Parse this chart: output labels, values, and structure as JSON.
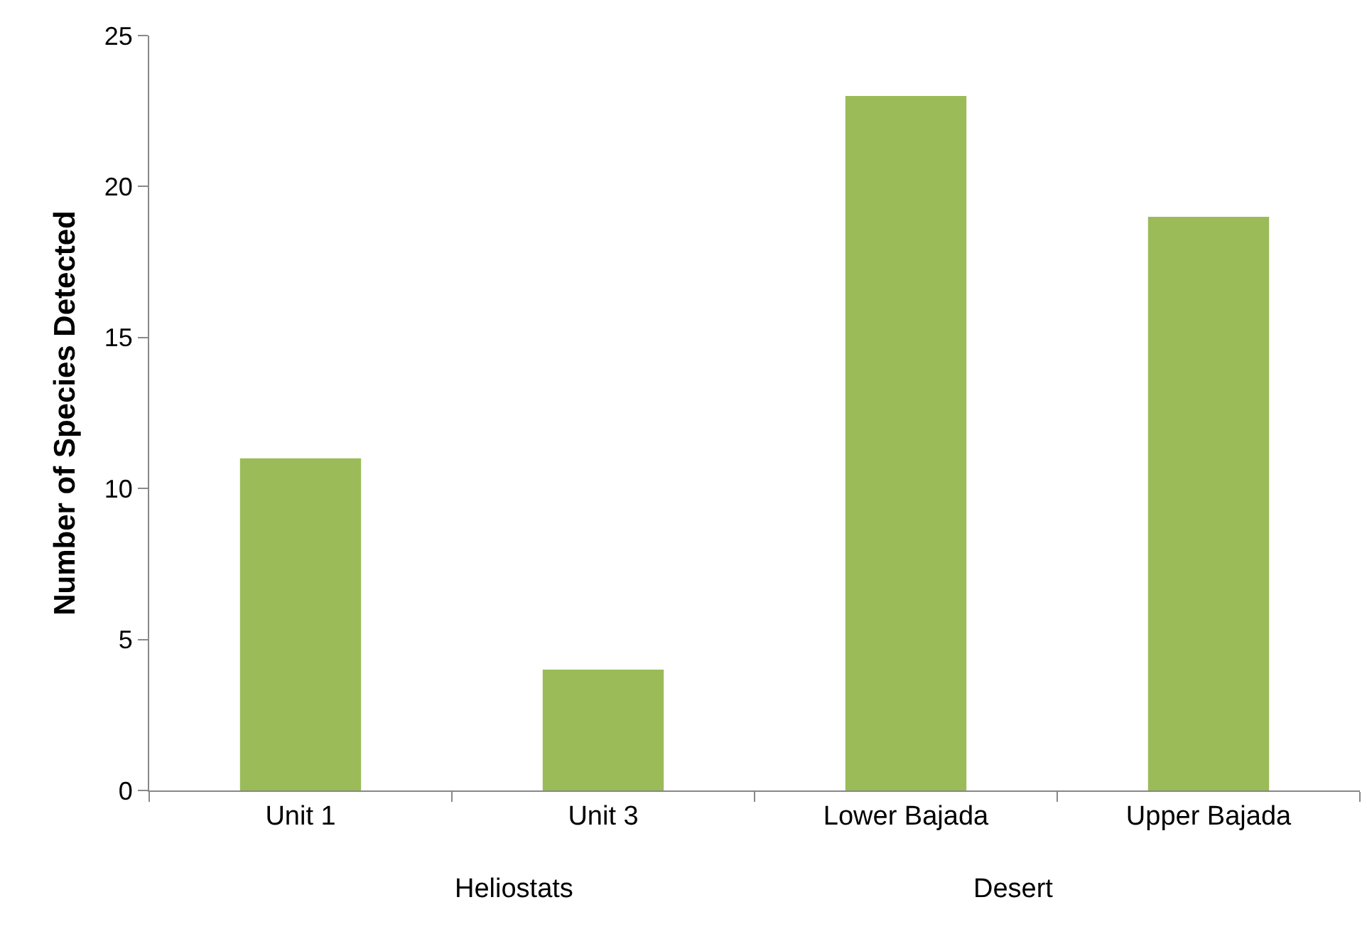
{
  "chart_data": {
    "type": "bar",
    "ylabel": "Number of Species Detected",
    "categories": [
      "Unit 1",
      "Unit 3",
      "Lower Bajada",
      "Upper Bajada"
    ],
    "values": [
      11,
      4,
      23,
      19
    ],
    "color": "#9bbb59",
    "ylim": [
      0,
      25
    ],
    "yticks": [
      0,
      5,
      10,
      15,
      20,
      25
    ],
    "grid": false,
    "annotations": [
      "Heliostats",
      "Desert"
    ]
  }
}
